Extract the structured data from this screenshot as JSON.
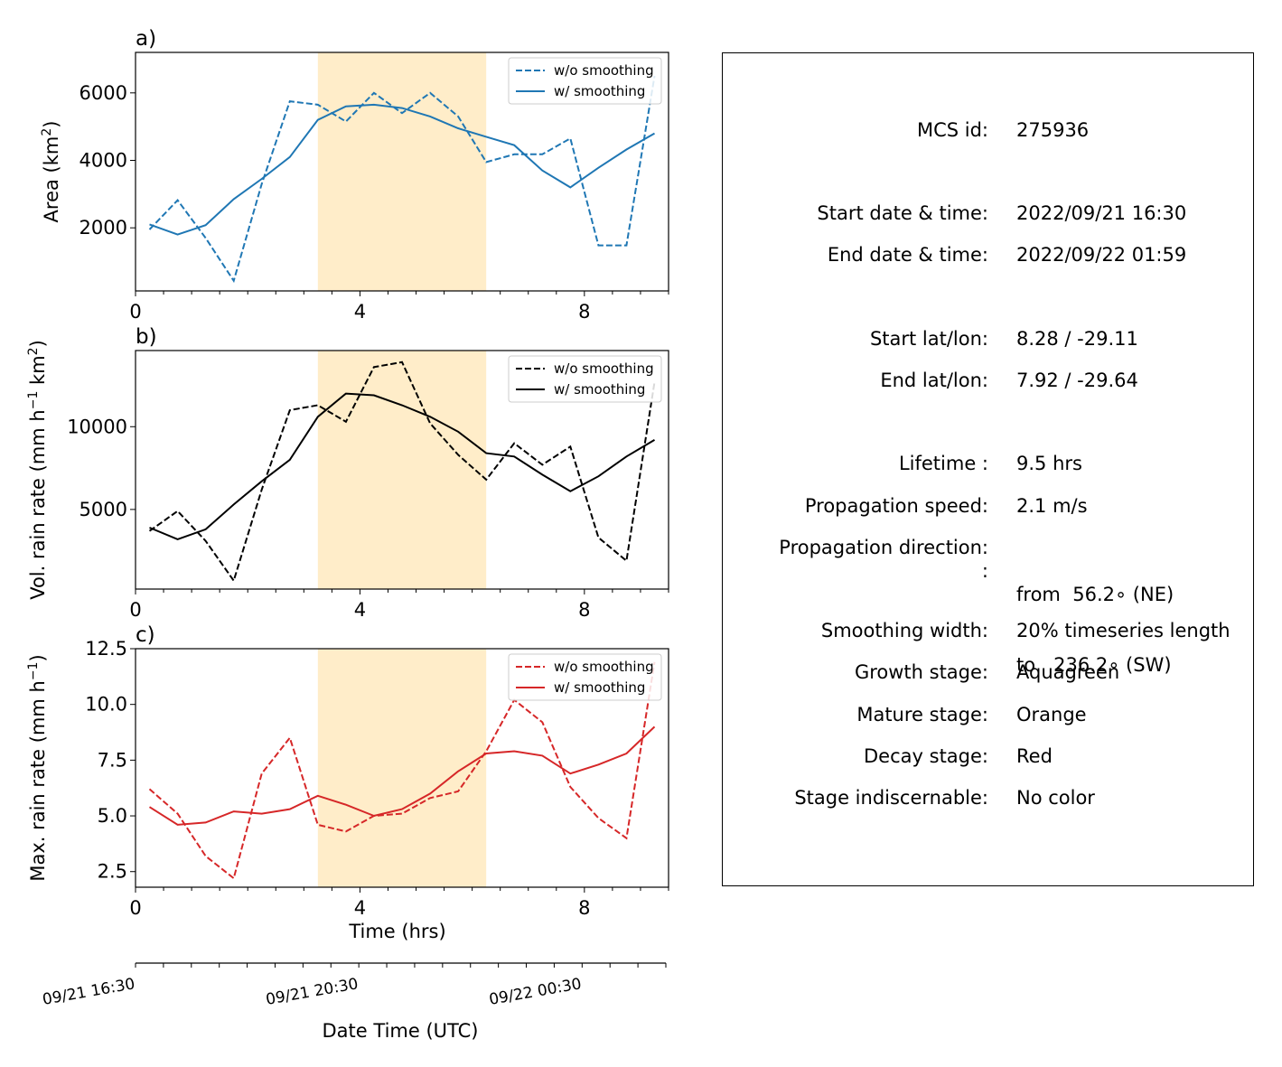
{
  "chart_data": [
    {
      "panel_label": "a)",
      "type": "line",
      "ylabel": "Area  (km$^2$)",
      "ylabel_parts": [
        "Area  (km",
        "2",
        ")"
      ],
      "xlim": [
        0,
        9.5
      ],
      "ylim": [
        130,
        7200
      ],
      "xticks": [
        0,
        4,
        8
      ],
      "yticks": [
        2000,
        4000,
        6000
      ],
      "color": "#1f77b4",
      "legend": [
        "w/o smoothing",
        "w/ smoothing"
      ],
      "legend_position": "upper right",
      "shaded_region": {
        "x0": 3.25,
        "x1": 6.25,
        "color": "#ffedc9"
      },
      "series": [
        {
          "name": "w/o smoothing",
          "style": "dashed",
          "x": [
            0.25,
            0.75,
            1.25,
            1.75,
            2.25,
            2.75,
            3.25,
            3.75,
            4.25,
            4.75,
            5.25,
            5.75,
            6.25,
            6.75,
            7.25,
            7.75,
            8.25,
            8.75,
            9.25
          ],
          "y": [
            1950,
            2820,
            1700,
            430,
            3300,
            5750,
            5650,
            5150,
            6000,
            5400,
            6000,
            5300,
            3950,
            4180,
            4180,
            4650,
            1480,
            1480,
            6500
          ]
        },
        {
          "name": "w/ smoothing",
          "style": "solid",
          "x": [
            0.25,
            0.75,
            1.25,
            1.75,
            2.25,
            2.75,
            3.25,
            3.75,
            4.25,
            4.75,
            5.25,
            5.75,
            6.25,
            6.75,
            7.25,
            7.75,
            8.25,
            8.75,
            9.25
          ],
          "y": [
            2100,
            1800,
            2080,
            2850,
            3450,
            4100,
            5200,
            5600,
            5650,
            5550,
            5300,
            4950,
            4700,
            4450,
            3700,
            3200,
            3780,
            4320,
            4800
          ]
        }
      ]
    },
    {
      "panel_label": "b)",
      "type": "line",
      "ylabel_parts": [
        "Vol. rain rate (mm h",
        "−1",
        " km",
        "2",
        ")"
      ],
      "xlim": [
        0,
        9.5
      ],
      "ylim": [
        190,
        14600
      ],
      "xticks": [
        0,
        4,
        8
      ],
      "yticks": [
        5000,
        10000
      ],
      "color": "#000000",
      "legend": [
        "w/o smoothing",
        "w/ smoothing"
      ],
      "legend_position": "upper right",
      "shaded_region": {
        "x0": 3.25,
        "x1": 6.25,
        "color": "#ffedc9"
      },
      "series": [
        {
          "name": "w/o smoothing",
          "style": "dashed",
          "x": [
            0.25,
            0.75,
            1.25,
            1.75,
            2.25,
            2.75,
            3.25,
            3.75,
            4.25,
            4.75,
            5.25,
            5.75,
            6.25,
            6.75,
            7.25,
            7.75,
            8.25,
            8.75,
            9.25
          ],
          "y": [
            3700,
            4900,
            3100,
            700,
            6200,
            11000,
            11300,
            10300,
            13600,
            13900,
            10200,
            8300,
            6800,
            9000,
            7700,
            8800,
            3300,
            1900,
            12700
          ]
        },
        {
          "name": "w/ smoothing",
          "style": "solid",
          "x": [
            0.25,
            0.75,
            1.25,
            1.75,
            2.25,
            2.75,
            3.25,
            3.75,
            4.25,
            4.75,
            5.25,
            5.75,
            6.25,
            6.75,
            7.25,
            7.75,
            8.25,
            8.75,
            9.25
          ],
          "y": [
            3900,
            3200,
            3800,
            5300,
            6700,
            8000,
            10600,
            12000,
            11900,
            11300,
            10600,
            9700,
            8400,
            8200,
            7100,
            6100,
            7000,
            8200,
            9200
          ]
        }
      ]
    },
    {
      "panel_label": "c)",
      "type": "line",
      "ylabel_parts": [
        "Max. rain rate  (mm h",
        "−1",
        ")"
      ],
      "xlabel": "Time (hrs)",
      "xlim": [
        0,
        9.5
      ],
      "ylim": [
        1.8,
        12.5
      ],
      "xticks": [
        0,
        4,
        8
      ],
      "yticks": [
        2.5,
        5.0,
        7.5,
        10.0,
        12.5
      ],
      "ytick_labels": [
        "2.5",
        "5.0",
        "7.5",
        "10.0",
        "12.5"
      ],
      "color": "#d62728",
      "legend": [
        "w/o smoothing",
        "w/ smoothing"
      ],
      "legend_position": "upper right",
      "shaded_region": {
        "x0": 3.25,
        "x1": 6.25,
        "color": "#ffedc9"
      },
      "series": [
        {
          "name": "w/o smoothing",
          "style": "dashed",
          "x": [
            0.25,
            0.75,
            1.25,
            1.75,
            2.25,
            2.75,
            3.25,
            3.75,
            4.25,
            4.75,
            5.25,
            5.75,
            6.25,
            6.75,
            7.25,
            7.75,
            8.25,
            8.75,
            9.25
          ],
          "y": [
            6.2,
            5.1,
            3.2,
            2.2,
            6.9,
            8.5,
            4.6,
            4.3,
            5.0,
            5.1,
            5.8,
            6.1,
            7.9,
            10.2,
            9.2,
            6.3,
            4.9,
            4.0,
            11.9
          ]
        },
        {
          "name": "w/ smoothing",
          "style": "solid",
          "x": [
            0.25,
            0.75,
            1.25,
            1.75,
            2.25,
            2.75,
            3.25,
            3.75,
            4.25,
            4.75,
            5.25,
            5.75,
            6.25,
            6.75,
            7.25,
            7.75,
            8.25,
            8.75,
            9.25
          ],
          "y": [
            5.4,
            4.6,
            4.7,
            5.2,
            5.1,
            5.3,
            5.9,
            5.5,
            5.0,
            5.3,
            6.0,
            7.0,
            7.8,
            7.9,
            7.7,
            6.9,
            7.3,
            7.8,
            9.0
          ]
        }
      ]
    }
  ],
  "datetime_axis": {
    "label": "Date Time (UTC)",
    "tick_labels": [
      {
        "x": 0,
        "text": "09/21 16:30"
      },
      {
        "x": 4,
        "text": "09/21 20:30"
      },
      {
        "x": 8,
        "text": "09/22 00:30"
      }
    ]
  },
  "info": {
    "rows": [
      {
        "label": "MCS id:",
        "value": "275936"
      },
      {
        "label": "Start date & time:",
        "value": "2022/09/21 16:30"
      },
      {
        "label": "End date & time:",
        "value": "2022/09/22 01:59"
      },
      {
        "label": "Start lat/lon:",
        "value": "8.28 / -29.11"
      },
      {
        "label": "End lat/lon:",
        "value": "7.92 / -29.64"
      },
      {
        "label": "Lifetime :",
        "value": "9.5 hrs"
      },
      {
        "label": "Propagation speed:",
        "value": "2.1 m/s"
      },
      {
        "label": "Propagation direction:",
        "label2": ":",
        "value": "from  56.2∘ (NE)",
        "value2": "to   236.2∘ (SW)"
      },
      {
        "label": "Smoothing width:",
        "value": "20% timeseries length"
      },
      {
        "label": "Growth stage:",
        "value": "Aquagreen"
      },
      {
        "label": "Mature stage:",
        "value": "Orange"
      },
      {
        "label": "Decay stage:",
        "value": "Red"
      },
      {
        "label": "Stage indiscernable:",
        "value": "No color"
      }
    ]
  }
}
